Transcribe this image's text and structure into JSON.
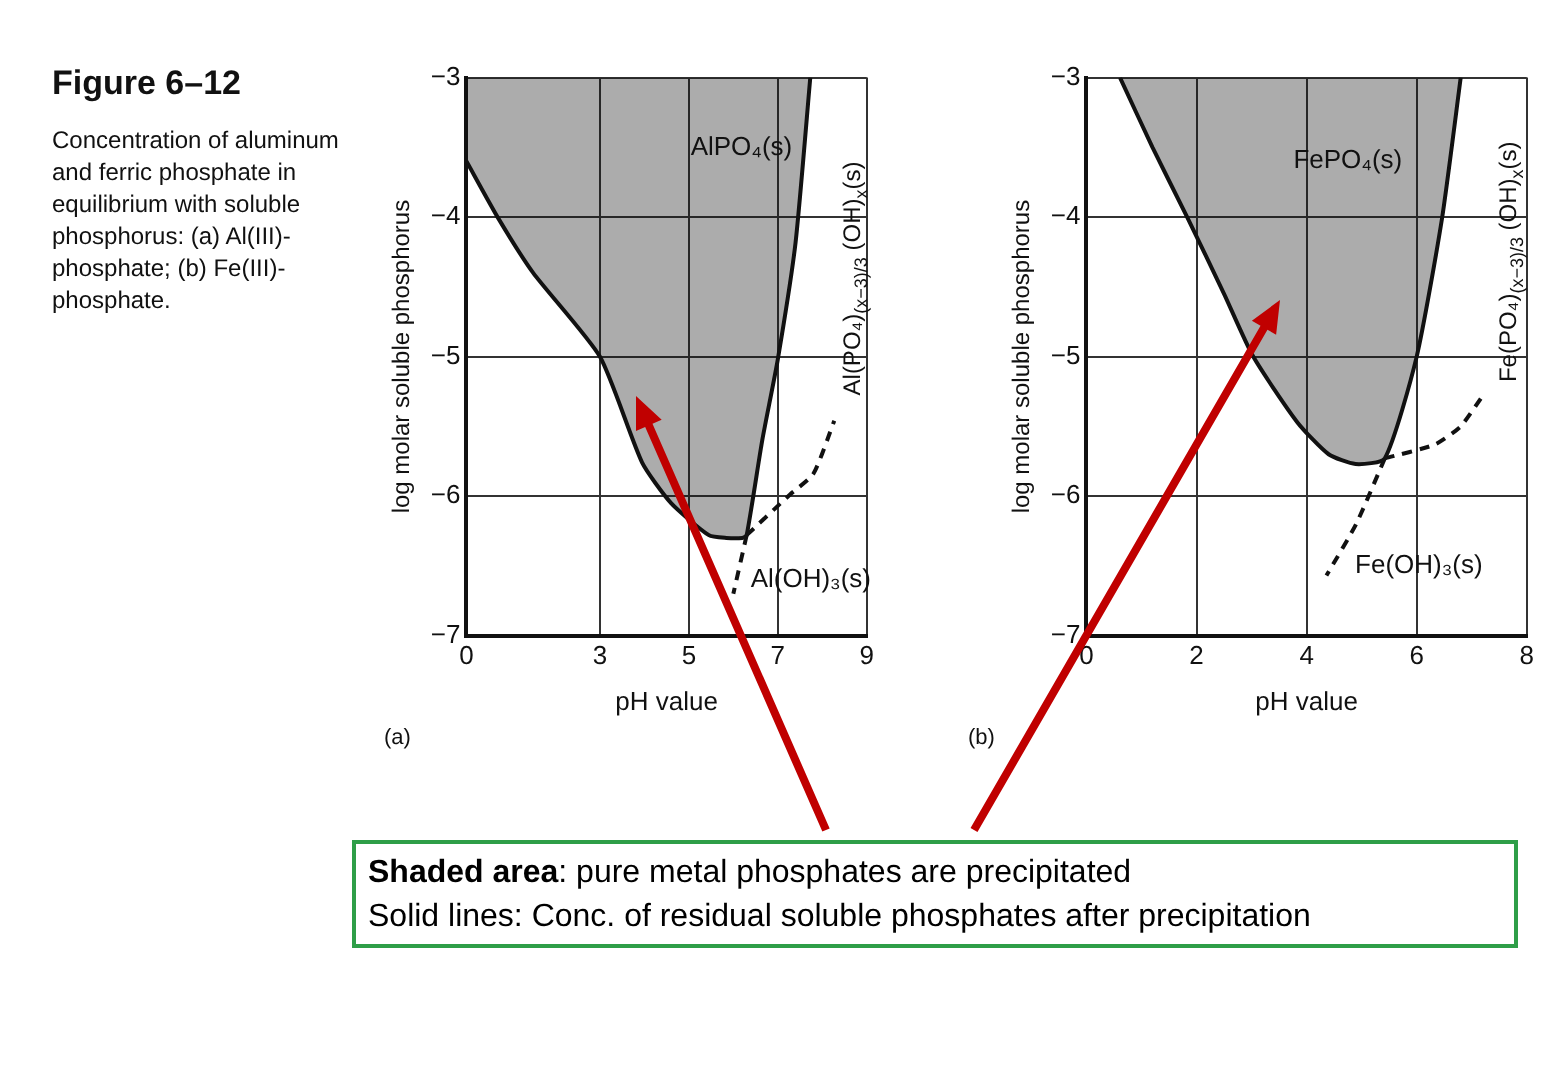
{
  "chart_data": [
    {
      "type": "line",
      "title": "Figure 6–12",
      "subtitle": "Concentration of aluminum and ferric phosphate in equilibrium with soluble phosphorus: (a) Al(III)-phosphate; (b) Fe(III)-phosphate.",
      "xlabel": "pH value",
      "ylabel": "log molar soluble phosphorus",
      "xlim": [
        0,
        9
      ],
      "xticks": [
        0,
        3,
        5,
        7,
        9
      ],
      "ylim": [
        -7,
        -3
      ],
      "yticks": [
        -3,
        -4,
        -5,
        -6,
        -7
      ],
      "grid": true,
      "series": [
        {
          "type": "area",
          "color": "#111111",
          "x": [
            0,
            0.7,
            1.5,
            3,
            3.95,
            4.6,
            5.45,
            5.84,
            6.2,
            6.3,
            6.65,
            7,
            7.4,
            7.73
          ],
          "values": [
            -3.6,
            -4,
            -4.4,
            -5,
            -5.76,
            -6.05,
            -6.28,
            -6.3,
            -6.3,
            -6.28,
            -5.6,
            -5.02,
            -4.18,
            -3
          ]
        },
        {
          "type": "line",
          "line_style": "dashed",
          "color": "#111111",
          "x": [
            6.3,
            7.27,
            7.8,
            8.27
          ],
          "values": [
            -6.28,
            -5.99,
            -5.84,
            -5.46
          ]
        },
        {
          "type": "line",
          "line_style": "dashed",
          "color": "#111111",
          "x": [
            6.3,
            6.0
          ],
          "values": [
            -6.28,
            -6.7
          ]
        }
      ],
      "annotations": [
        "AlPO₄(s)",
        "Al(PO₄)$_{(x−3)/3}$ (OH)$_{x}$(s)",
        "Al(OH)₃(s)",
        "(a)"
      ]
    },
    {
      "type": "line",
      "xlabel": "pH value",
      "ylabel": "log molar soluble phosphorus",
      "xlim": [
        0,
        8
      ],
      "xticks": [
        0,
        2,
        4,
        6,
        8
      ],
      "ylim": [
        -7,
        -3
      ],
      "yticks": [
        -3,
        -4,
        -5,
        -6,
        -7
      ],
      "grid": true,
      "series": [
        {
          "type": "area",
          "color": "#111111",
          "x": [
            0.61,
            1.2,
            1.83,
            2.5,
            3.03,
            3.83,
            4.4,
            4.89,
            5.42,
            6,
            6.46,
            6.8
          ],
          "values": [
            -3,
            -3.5,
            -4,
            -4.55,
            -5,
            -5.47,
            -5.7,
            -5.77,
            -5.73,
            -5,
            -4.01,
            -3
          ]
        },
        {
          "type": "line",
          "line_style": "dashed",
          "color": "#111111",
          "x": [
            5.42,
            6.33,
            6.8,
            7.2
          ],
          "values": [
            -5.73,
            -5.63,
            -5.5,
            -5.28
          ]
        },
        {
          "type": "line",
          "line_style": "dashed",
          "color": "#111111",
          "x": [
            5.42,
            4.9,
            4.36
          ],
          "values": [
            -5.73,
            -6.2,
            -6.57
          ]
        }
      ],
      "annotations": [
        "FePO₄(s)",
        "Fe(PO₄)$_{(x−3)/3}$ (OH)$_{x}$(s)",
        "Fe(OH)₃(s)",
        "(b)"
      ]
    },
    {
      "type": "other",
      "annotations": [
        "Shaded area: pure metal phosphates are precipitated",
        "Solid lines: Conc. of residual soluble phosphates after precipitation"
      ]
    }
  ]
}
